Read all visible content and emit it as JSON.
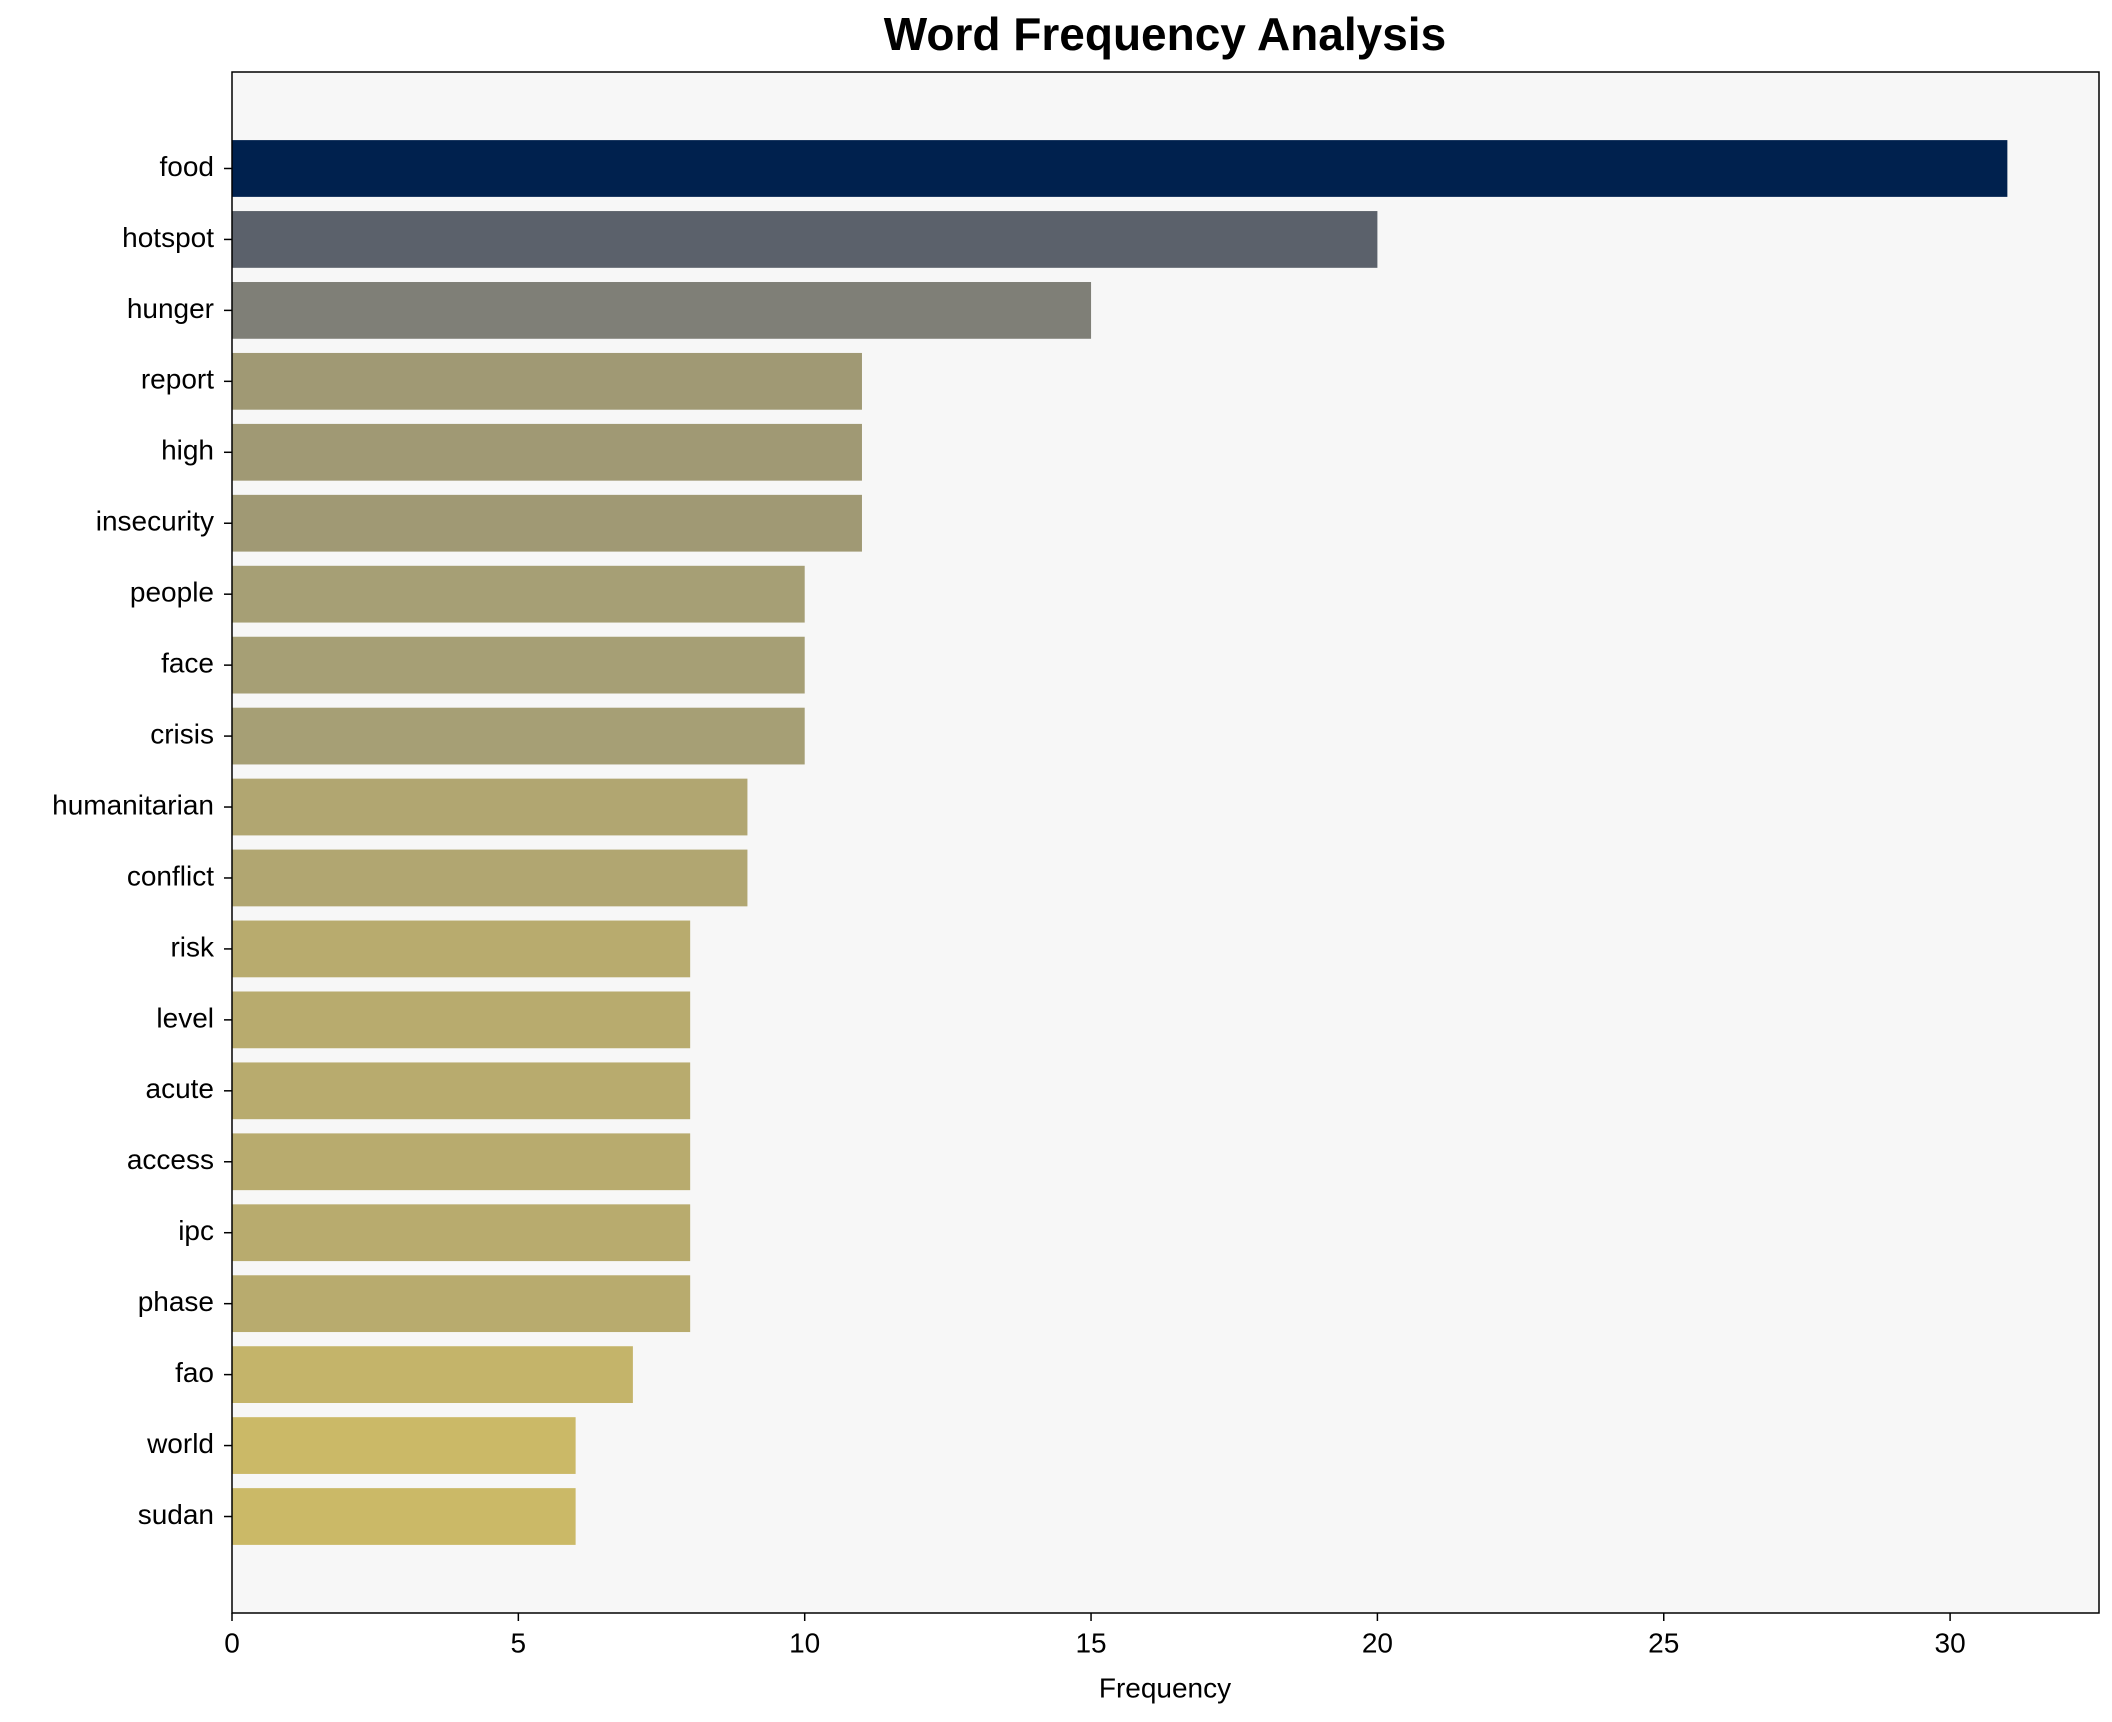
{
  "chart_data": {
    "type": "barh",
    "title": "Word Frequency Analysis",
    "xlabel": "Frequency",
    "categories": [
      "food",
      "hotspot",
      "hunger",
      "report",
      "high",
      "insecurity",
      "people",
      "face",
      "crisis",
      "humanitarian",
      "conflict",
      "risk",
      "level",
      "acute",
      "access",
      "ipc",
      "phase",
      "fao",
      "world",
      "sudan"
    ],
    "values": [
      31,
      20,
      15,
      11,
      11,
      11,
      10,
      10,
      10,
      9,
      9,
      8,
      8,
      8,
      8,
      8,
      8,
      7,
      6,
      6
    ],
    "colors": [
      "#00214e",
      "#5b616b",
      "#7f7f77",
      "#a09974",
      "#a09974",
      "#a09974",
      "#a69f75",
      "#a69f75",
      "#a69f75",
      "#b1a671",
      "#b1a671",
      "#b8ab6e",
      "#b8ab6e",
      "#b8ab6e",
      "#b8ab6e",
      "#b8ab6e",
      "#b8ab6e",
      "#c4b46a",
      "#cbb967",
      "#cbb967"
    ],
    "xlim": [
      0,
      32.6
    ],
    "xticks": [
      0,
      5,
      10,
      15,
      20,
      25,
      30
    ],
    "background": "#f7f7f7"
  }
}
